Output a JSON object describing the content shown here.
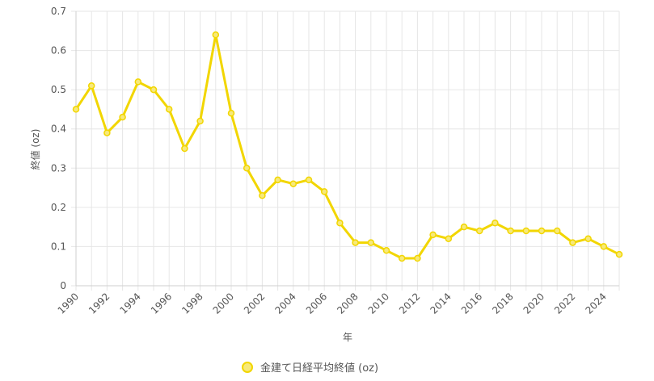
{
  "chart_data": {
    "type": "line",
    "title": "",
    "xlabel": "年",
    "ylabel": "終値 (oz)",
    "x": [
      1990,
      1991,
      1992,
      1993,
      1994,
      1995,
      1996,
      1997,
      1998,
      1999,
      2000,
      2001,
      2002,
      2003,
      2004,
      2005,
      2006,
      2007,
      2008,
      2009,
      2010,
      2011,
      2012,
      2013,
      2014,
      2015,
      2016,
      2017,
      2018,
      2019,
      2020,
      2021,
      2022,
      2023,
      2024,
      2025
    ],
    "x_tick_labels": [
      "1990",
      "1992",
      "1994",
      "1996",
      "1998",
      "2000",
      "2002",
      "2004",
      "2006",
      "2008",
      "2010",
      "2012",
      "2014",
      "2016",
      "2018",
      "2020",
      "2022",
      "2024"
    ],
    "y_ticks": [
      0,
      0.1,
      0.2,
      0.3,
      0.4,
      0.5,
      0.6,
      0.7
    ],
    "y_tick_labels": [
      "0",
      "0.1",
      "0.2",
      "0.3",
      "0.4",
      "0.5",
      "0.6",
      "0.7"
    ],
    "ylim": [
      0,
      0.7
    ],
    "grid": true,
    "legend_position": "bottom",
    "colors": {
      "line": "#f2d600",
      "point_fill": "#f7e97a",
      "grid": "#e6e6e6"
    },
    "series": [
      {
        "name": "金建て日経平均終値 (oz)",
        "values": [
          0.45,
          0.51,
          0.39,
          0.43,
          0.52,
          0.5,
          0.45,
          0.35,
          0.42,
          0.64,
          0.44,
          0.3,
          0.23,
          0.27,
          0.26,
          0.27,
          0.24,
          0.16,
          0.11,
          0.11,
          0.09,
          0.07,
          0.07,
          0.13,
          0.12,
          0.15,
          0.14,
          0.16,
          0.14,
          0.14,
          0.14,
          0.14,
          0.11,
          0.12,
          0.1,
          0.08
        ]
      }
    ]
  }
}
